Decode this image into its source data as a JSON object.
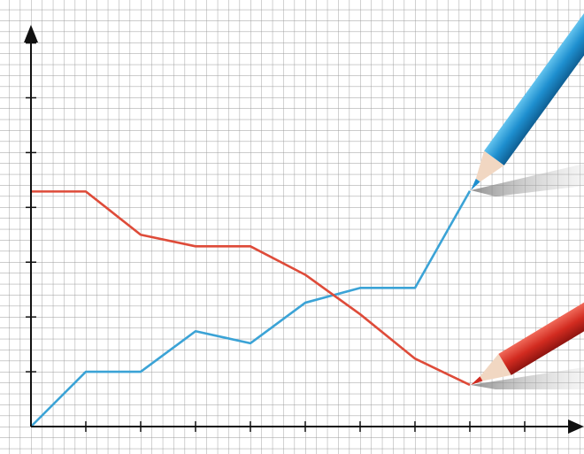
{
  "chart_data": {
    "type": "line",
    "x": [
      0,
      1,
      2,
      3,
      4,
      5,
      6,
      7,
      8
    ],
    "series": [
      {
        "color": "#3ba3d6",
        "values": [
          0,
          1,
          1,
          1.74,
          1.52,
          2.26,
          2.53,
          2.53,
          4.3
        ]
      },
      {
        "color": "#de4b39",
        "values": [
          4.29,
          4.29,
          3.5,
          3.29,
          3.29,
          2.77,
          2.05,
          1.24,
          0.76
        ]
      }
    ],
    "xlim": [
      0,
      10
    ],
    "ylim": [
      0,
      7.3
    ],
    "xticks": [
      1,
      2,
      3,
      4,
      5,
      6,
      7,
      8,
      9
    ],
    "yticks": [
      1,
      2,
      3,
      4,
      5,
      6,
      7
    ],
    "grid": true
  }
}
